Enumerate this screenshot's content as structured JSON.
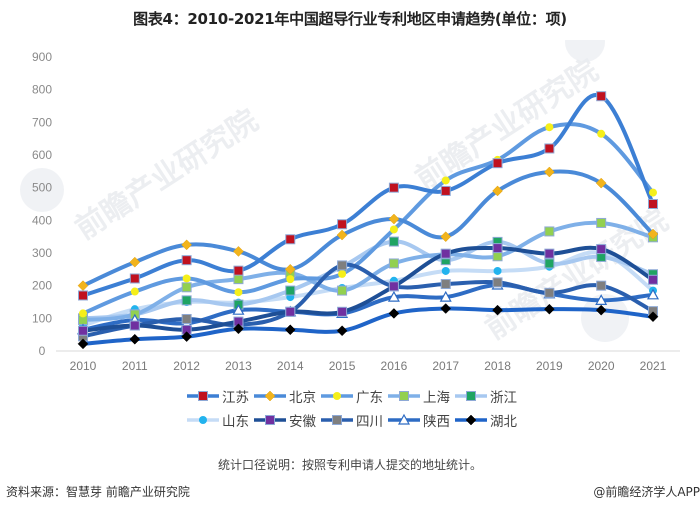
{
  "title": "图表4：2010-2021年中国超导行业专利地区申请趋势(单位：项)",
  "note": "统计口径说明：按照专利申请人提交的地址统计。",
  "footer": {
    "source": "资料来源：智慧芽 前瞻产业研究院",
    "credit": "@前瞻经济学人APP"
  },
  "watermark": {
    "text": "前瞻产业研究院"
  },
  "chart_data": {
    "type": "line",
    "title": "图表4：2010-2021年中国超导行业专利地区申请趋势(单位：项)",
    "xlabel": "",
    "ylabel": "",
    "ylim": [
      0,
      900
    ],
    "yticks": [
      0,
      100,
      200,
      300,
      400,
      500,
      600,
      700,
      800,
      900
    ],
    "grid": false,
    "legend_position": "bottom",
    "categories": [
      "2010",
      "2011",
      "2012",
      "2013",
      "2014",
      "2015",
      "2016",
      "2017",
      "2018",
      "2019",
      "2020",
      "2021"
    ],
    "series": [
      {
        "name": "江苏",
        "line_color": "#3c7fd4",
        "line_width": 4,
        "marker": "square",
        "marker_color": "#c0111f",
        "values": [
          170,
          222,
          278,
          246,
          342,
          388,
          500,
          490,
          575,
          620,
          780,
          450
        ]
      },
      {
        "name": "北京",
        "line_color": "#4a8ad8",
        "line_width": 4,
        "marker": "diamond",
        "marker_color": "#f2b41c",
        "values": [
          200,
          272,
          325,
          305,
          250,
          355,
          404,
          350,
          490,
          548,
          514,
          358
        ]
      },
      {
        "name": "广东",
        "line_color": "#5f9ae0",
        "line_width": 4,
        "marker": "circle",
        "marker_color": "#f5ef1a",
        "values": [
          115,
          182,
          222,
          180,
          220,
          236,
          372,
          522,
          585,
          685,
          665,
          485
        ]
      },
      {
        "name": "上海",
        "line_color": "#7fb0e8",
        "line_width": 4,
        "marker": "square",
        "marker_color": "#92d050",
        "values": [
          95,
          112,
          195,
          220,
          238,
          185,
          268,
          296,
          290,
          366,
          392,
          348
        ]
      },
      {
        "name": "浙江",
        "line_color": "#a7c8f0",
        "line_width": 4,
        "marker": "square",
        "marker_color": "#1fa463",
        "values": [
          100,
          112,
          155,
          142,
          185,
          258,
          335,
          278,
          334,
          268,
          288,
          235
        ]
      },
      {
        "name": "山东",
        "line_color": "#c5dcf6",
        "line_width": 4,
        "marker": "circle",
        "marker_color": "#22b3ee",
        "values": [
          78,
          128,
          150,
          148,
          165,
          193,
          215,
          245,
          245,
          258,
          300,
          185
        ]
      },
      {
        "name": "安徽",
        "line_color": "#1e4f96",
        "line_width": 4,
        "marker": "square",
        "marker_color": "#7030a0",
        "values": [
          62,
          78,
          65,
          90,
          120,
          120,
          198,
          298,
          315,
          298,
          312,
          218
        ]
      },
      {
        "name": "四川",
        "line_color": "#2a5fae",
        "line_width": 4,
        "marker": "square",
        "marker_color": "#7f7f7f",
        "values": [
          45,
          78,
          98,
          80,
          120,
          262,
          198,
          205,
          210,
          178,
          200,
          122
        ]
      },
      {
        "name": "陕西",
        "line_color": "#2e6cc4",
        "line_width": 4,
        "marker": "triangle",
        "marker_color": "#ffffff",
        "values": [
          65,
          95,
          85,
          125,
          120,
          115,
          165,
          165,
          202,
          175,
          155,
          172
        ]
      },
      {
        "name": "湖北",
        "line_color": "#1f64c8",
        "line_width": 4,
        "marker": "diamond",
        "marker_color": "#000000",
        "values": [
          22,
          36,
          44,
          68,
          65,
          62,
          115,
          130,
          125,
          128,
          125,
          105
        ]
      }
    ]
  }
}
